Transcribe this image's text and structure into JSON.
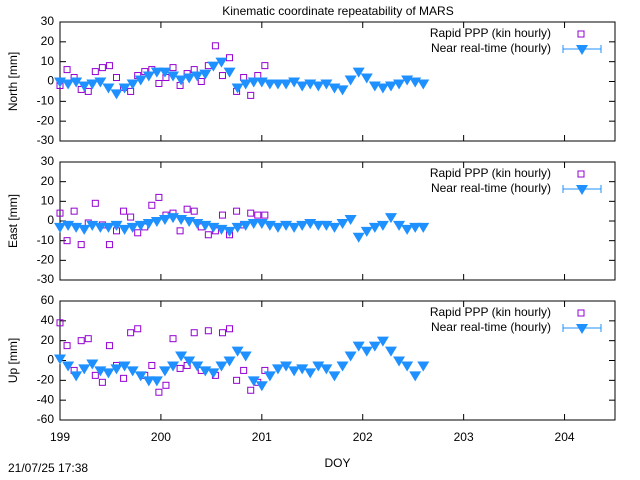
{
  "timestamp": "21/07/25 17:38",
  "chart_data": [
    {
      "type": "scatter",
      "title": "Kinematic coordinate repeatability of MARS",
      "ylabel": "North [mm]",
      "xlim": [
        199,
        204.5
      ],
      "xticks": [
        199,
        200,
        201,
        202,
        203,
        204
      ],
      "ylim": [
        -30,
        30
      ],
      "yticks": [
        -30,
        -20,
        -10,
        0,
        10,
        20,
        30
      ],
      "grid": false,
      "legend": "upper right",
      "series": [
        {
          "name": "Rapid PPP (kin hourly)",
          "color": "#9400d3",
          "marker": "square",
          "x": [
            199.0,
            199.07,
            199.14,
            199.21,
            199.28,
            199.35,
            199.42,
            199.49,
            199.56,
            199.63,
            199.7,
            199.77,
            199.84,
            199.91,
            199.98,
            200.05,
            200.12,
            200.19,
            200.26,
            200.33,
            200.4,
            200.47,
            200.54,
            200.61,
            200.68,
            200.75,
            200.82,
            200.89,
            200.96,
            201.03
          ],
          "values": [
            -2,
            6,
            2,
            -4,
            -5,
            5,
            7,
            8,
            2,
            -3,
            -5,
            3,
            5,
            6,
            -1,
            2,
            7,
            -2,
            4,
            6,
            0,
            8,
            18,
            3,
            12,
            -5,
            2,
            -7,
            3,
            8
          ]
        },
        {
          "name": "Near real-time (hourly)",
          "color": "#1e90ff",
          "marker": "triangle-down",
          "x": [
            199.0,
            199.08,
            199.16,
            199.24,
            199.32,
            199.4,
            199.48,
            199.56,
            199.64,
            199.72,
            199.8,
            199.88,
            199.96,
            200.04,
            200.12,
            200.2,
            200.28,
            200.36,
            200.44,
            200.52,
            200.6,
            200.68,
            200.76,
            200.84,
            200.92,
            201.0,
            201.08,
            201.16,
            201.24,
            201.32,
            201.4,
            201.48,
            201.56,
            201.64,
            201.72,
            201.8,
            201.88,
            201.96,
            202.04,
            202.12,
            202.2,
            202.28,
            202.36,
            202.44,
            202.52,
            202.6
          ],
          "values": [
            0,
            -1,
            0,
            -2,
            -1,
            0,
            -3,
            -6,
            -3,
            -1,
            1,
            3,
            5,
            5,
            3,
            1,
            2,
            3,
            4,
            8,
            10,
            5,
            -3,
            -1,
            0,
            0,
            -1,
            -1,
            -1,
            0,
            -2,
            -1,
            -2,
            -1,
            -3,
            -4,
            1,
            5,
            2,
            -2,
            -3,
            -2,
            -1,
            1,
            0,
            -1
          ]
        }
      ]
    },
    {
      "type": "scatter",
      "ylabel": "East [mm]",
      "xlim": [
        199,
        204.5
      ],
      "xticks": [
        199,
        200,
        201,
        202,
        203,
        204
      ],
      "ylim": [
        -30,
        30
      ],
      "yticks": [
        -30,
        -20,
        -10,
        0,
        10,
        20,
        30
      ],
      "grid": false,
      "legend": "upper right",
      "series": [
        {
          "name": "Rapid PPP (kin hourly)",
          "color": "#9400d3",
          "marker": "square",
          "x": [
            199.0,
            199.07,
            199.14,
            199.21,
            199.28,
            199.35,
            199.42,
            199.49,
            199.56,
            199.63,
            199.7,
            199.77,
            199.84,
            199.91,
            199.98,
            200.05,
            200.12,
            200.19,
            200.26,
            200.33,
            200.4,
            200.47,
            200.54,
            200.61,
            200.68,
            200.75,
            200.82,
            200.89,
            200.96,
            201.03
          ],
          "values": [
            4,
            -10,
            5,
            -12,
            -1,
            9,
            -2,
            -12,
            -5,
            5,
            2,
            -6,
            -3,
            8,
            12,
            3,
            4,
            -5,
            6,
            5,
            -3,
            -7,
            -5,
            3,
            -7,
            5,
            -2,
            4,
            3,
            3
          ]
        },
        {
          "name": "Near real-time (hourly)",
          "color": "#1e90ff",
          "marker": "triangle-down",
          "x": [
            199.0,
            199.08,
            199.16,
            199.24,
            199.32,
            199.4,
            199.48,
            199.56,
            199.64,
            199.72,
            199.8,
            199.88,
            199.96,
            200.04,
            200.12,
            200.2,
            200.28,
            200.36,
            200.44,
            200.52,
            200.6,
            200.68,
            200.76,
            200.84,
            200.92,
            201.0,
            201.08,
            201.16,
            201.24,
            201.32,
            201.4,
            201.48,
            201.56,
            201.64,
            201.72,
            201.8,
            201.88,
            201.96,
            202.04,
            202.12,
            202.2,
            202.28,
            202.36,
            202.44,
            202.52,
            202.6
          ],
          "values": [
            -3,
            -2,
            -3,
            -4,
            -2,
            -3,
            -3,
            -2,
            -4,
            -3,
            -2,
            -1,
            0,
            1,
            2,
            1,
            0,
            -1,
            -2,
            -3,
            -4,
            -5,
            -3,
            -2,
            -1,
            -1,
            -2,
            -3,
            -2,
            -3,
            -2,
            -1,
            -2,
            -2,
            -3,
            -1,
            1,
            -8,
            -5,
            -3,
            -2,
            2,
            -2,
            -4,
            -3,
            -3
          ]
        }
      ]
    },
    {
      "type": "scatter",
      "ylabel": "Up [mm]",
      "xlabel": "DOY",
      "xlim": [
        199,
        204.5
      ],
      "xticks": [
        199,
        200,
        201,
        202,
        203,
        204
      ],
      "ylim": [
        -60,
        60
      ],
      "yticks": [
        -60,
        -40,
        -20,
        0,
        20,
        40,
        60
      ],
      "grid": false,
      "legend": "upper right",
      "series": [
        {
          "name": "Rapid PPP (kin hourly)",
          "color": "#9400d3",
          "marker": "square",
          "x": [
            199.0,
            199.07,
            199.14,
            199.21,
            199.28,
            199.35,
            199.42,
            199.49,
            199.56,
            199.63,
            199.7,
            199.77,
            199.84,
            199.91,
            199.98,
            200.05,
            200.12,
            200.19,
            200.26,
            200.33,
            200.4,
            200.47,
            200.54,
            200.61,
            200.68,
            200.75,
            200.82,
            200.89,
            200.96,
            201.03
          ],
          "values": [
            38,
            15,
            -10,
            20,
            22,
            -15,
            -22,
            15,
            -5,
            -18,
            28,
            32,
            -15,
            -5,
            -32,
            -25,
            22,
            -8,
            -5,
            28,
            -10,
            30,
            -15,
            28,
            32,
            -20,
            -10,
            -30,
            -22,
            -10
          ]
        },
        {
          "name": "Near real-time (hourly)",
          "color": "#1e90ff",
          "marker": "triangle-down",
          "x": [
            199.0,
            199.08,
            199.16,
            199.24,
            199.32,
            199.4,
            199.48,
            199.56,
            199.64,
            199.72,
            199.8,
            199.88,
            199.96,
            200.04,
            200.12,
            200.2,
            200.28,
            200.36,
            200.44,
            200.52,
            200.6,
            200.68,
            200.76,
            200.84,
            200.92,
            201.0,
            201.08,
            201.16,
            201.24,
            201.32,
            201.4,
            201.48,
            201.56,
            201.64,
            201.72,
            201.8,
            201.88,
            201.96,
            202.04,
            202.12,
            202.2,
            202.28,
            202.36,
            202.44,
            202.52,
            202.6
          ],
          "values": [
            2,
            -5,
            -15,
            -8,
            -3,
            -10,
            -12,
            -8,
            -5,
            -10,
            -15,
            -20,
            -20,
            -10,
            -5,
            5,
            0,
            -5,
            -10,
            -12,
            -5,
            0,
            10,
            5,
            -20,
            -25,
            -15,
            -8,
            -5,
            -10,
            -8,
            -12,
            -5,
            -8,
            -15,
            -5,
            5,
            15,
            10,
            15,
            20,
            10,
            0,
            -5,
            -15,
            -5
          ]
        }
      ]
    }
  ]
}
